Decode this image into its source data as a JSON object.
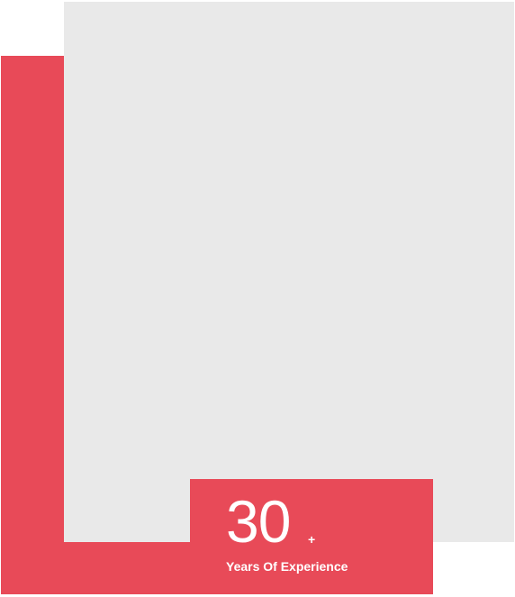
{
  "colors": {
    "accent": "#e84a58",
    "image_placeholder": "#e9e9e9",
    "badge_text": "#ffffff"
  },
  "experience_badge": {
    "number": "30",
    "suffix": "+",
    "label": "Years Of Experience"
  }
}
